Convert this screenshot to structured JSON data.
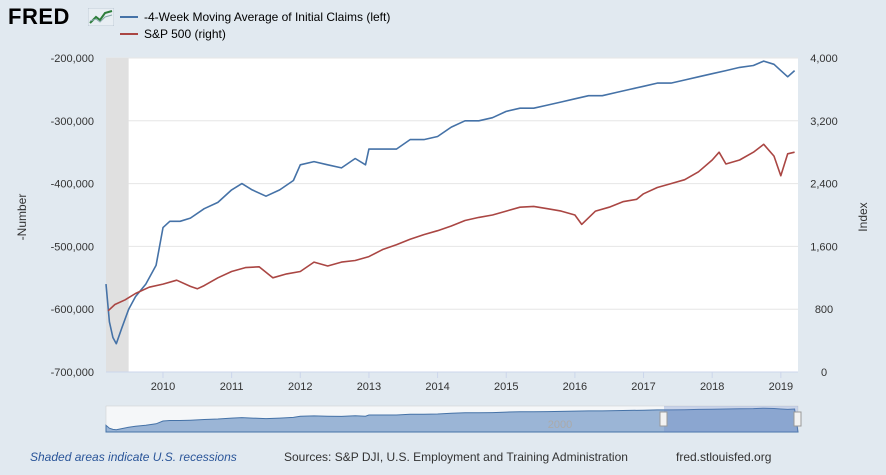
{
  "header": {
    "logo_text": "FRED",
    "legend": [
      {
        "label": "-4-Week Moving Average of Initial Claims (left)",
        "color": "#4572a7"
      },
      {
        "label": "S&P 500 (right)",
        "color": "#aa4643"
      }
    ]
  },
  "axes": {
    "left_title": "-Number",
    "right_title": "Index"
  },
  "footer": {
    "recession_note": "Shaded areas indicate U.S. recessions",
    "sources": "Sources: S&P DJI, U.S. Employment and Training Administration",
    "site": "fred.stlouisfed.org"
  },
  "navigator": {
    "label_2000": "2000"
  },
  "chart_data": {
    "type": "line",
    "title": "",
    "xlabel": "",
    "x_ticks": [
      "2010",
      "2011",
      "2012",
      "2013",
      "2014",
      "2015",
      "2016",
      "2017",
      "2018",
      "2019"
    ],
    "x_range": [
      2009.17,
      2019.25
    ],
    "recession": [
      2009.17,
      2009.5
    ],
    "left_axis": {
      "title": "-Number",
      "ylim": [
        -700000,
        -200000
      ],
      "ticks": [
        "-200,000",
        "-300,000",
        "-400,000",
        "-500,000",
        "-600,000",
        "-700,000"
      ],
      "tick_values": [
        -200000,
        -300000,
        -400000,
        -500000,
        -600000,
        -700000
      ]
    },
    "right_axis": {
      "title": "Index",
      "ylim": [
        0,
        4000
      ],
      "ticks": [
        "4,000",
        "3,200",
        "2,400",
        "1,600",
        "800",
        "0"
      ],
      "tick_values": [
        4000,
        3200,
        2400,
        1600,
        800,
        0
      ]
    },
    "series": [
      {
        "name": "-4-Week Moving Average of Initial Claims (left)",
        "axis": "left",
        "color": "#4572a7",
        "x": [
          2009.17,
          2009.22,
          2009.27,
          2009.32,
          2009.4,
          2009.5,
          2009.6,
          2009.75,
          2009.9,
          2010.0,
          2010.1,
          2010.25,
          2010.4,
          2010.6,
          2010.8,
          2011.0,
          2011.15,
          2011.3,
          2011.5,
          2011.7,
          2011.9,
          2012.0,
          2012.2,
          2012.4,
          2012.6,
          2012.8,
          2012.95,
          2013.0,
          2013.2,
          2013.4,
          2013.6,
          2013.8,
          2014.0,
          2014.2,
          2014.4,
          2014.6,
          2014.8,
          2015.0,
          2015.2,
          2015.4,
          2015.6,
          2015.8,
          2016.0,
          2016.2,
          2016.4,
          2016.6,
          2016.8,
          2017.0,
          2017.2,
          2017.4,
          2017.6,
          2017.8,
          2018.0,
          2018.2,
          2018.4,
          2018.6,
          2018.75,
          2018.9,
          2019.0,
          2019.1,
          2019.2
        ],
        "values": [
          -560000,
          -620000,
          -645000,
          -655000,
          -630000,
          -600000,
          -580000,
          -560000,
          -530000,
          -470000,
          -460000,
          -460000,
          -455000,
          -440000,
          -430000,
          -410000,
          -400000,
          -410000,
          -420000,
          -410000,
          -395000,
          -370000,
          -365000,
          -370000,
          -375000,
          -360000,
          -370000,
          -345000,
          -345000,
          -345000,
          -330000,
          -330000,
          -325000,
          -310000,
          -300000,
          -300000,
          -295000,
          -285000,
          -280000,
          -280000,
          -275000,
          -270000,
          -265000,
          -260000,
          -260000,
          -255000,
          -250000,
          -245000,
          -240000,
          -240000,
          -235000,
          -230000,
          -225000,
          -220000,
          -215000,
          -212000,
          -205000,
          -210000,
          -220000,
          -230000,
          -220000
        ]
      },
      {
        "name": "S&P 500 (right)",
        "axis": "right",
        "color": "#aa4643",
        "x": [
          2009.2,
          2009.3,
          2009.45,
          2009.6,
          2009.8,
          2010.0,
          2010.2,
          2010.4,
          2010.5,
          2010.6,
          2010.8,
          2011.0,
          2011.2,
          2011.4,
          2011.6,
          2011.8,
          2012.0,
          2012.2,
          2012.4,
          2012.6,
          2012.8,
          2013.0,
          2013.2,
          2013.4,
          2013.6,
          2013.8,
          2014.0,
          2014.2,
          2014.4,
          2014.6,
          2014.8,
          2015.0,
          2015.2,
          2015.4,
          2015.6,
          2015.8,
          2016.0,
          2016.1,
          2016.3,
          2016.5,
          2016.7,
          2016.9,
          2017.0,
          2017.2,
          2017.4,
          2017.6,
          2017.8,
          2018.0,
          2018.1,
          2018.2,
          2018.4,
          2018.6,
          2018.75,
          2018.9,
          2019.0,
          2019.1,
          2019.2
        ],
        "values": [
          780,
          860,
          920,
          1000,
          1080,
          1120,
          1170,
          1090,
          1060,
          1100,
          1200,
          1280,
          1330,
          1340,
          1200,
          1250,
          1280,
          1400,
          1350,
          1400,
          1420,
          1470,
          1560,
          1620,
          1690,
          1750,
          1800,
          1860,
          1930,
          1970,
          2000,
          2050,
          2100,
          2110,
          2080,
          2050,
          2000,
          1880,
          2050,
          2100,
          2170,
          2200,
          2270,
          2350,
          2400,
          2450,
          2550,
          2700,
          2800,
          2650,
          2700,
          2800,
          2900,
          2750,
          2500,
          2780,
          2800
        ]
      }
    ]
  }
}
